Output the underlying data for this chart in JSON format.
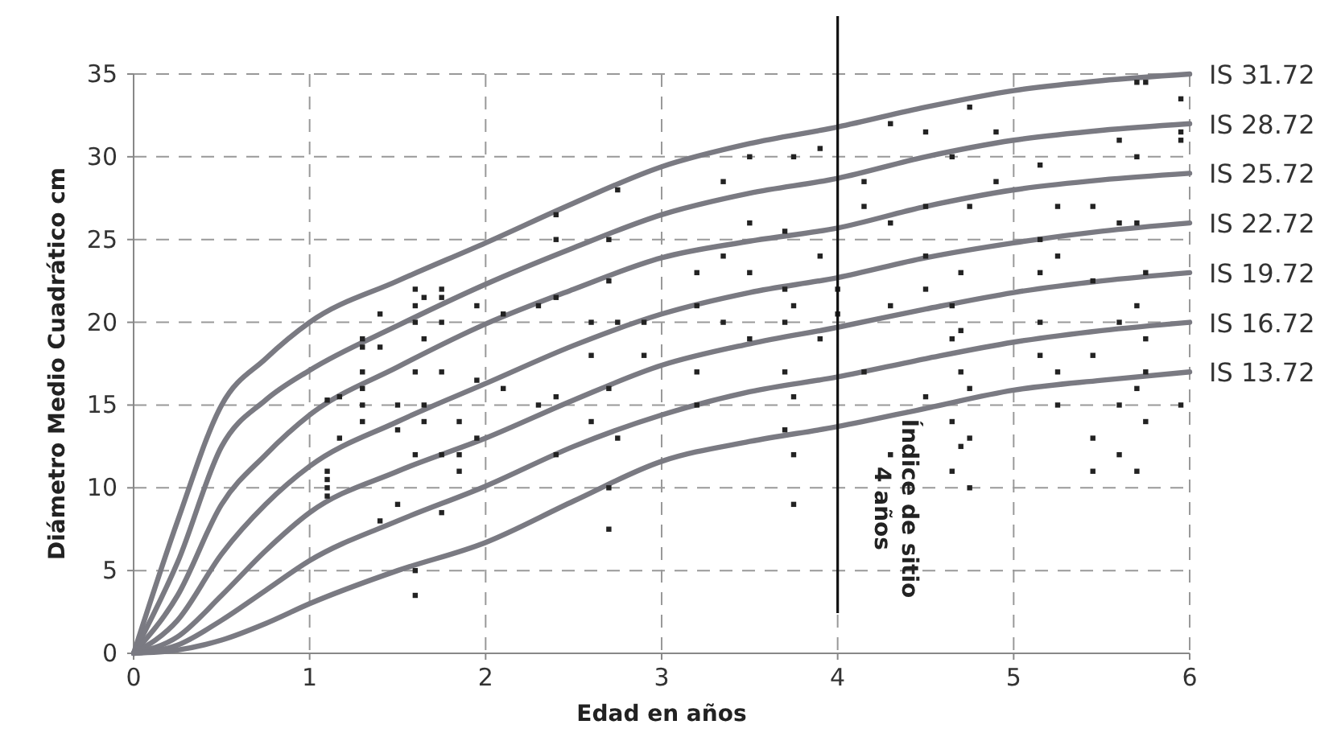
{
  "chart_data": {
    "type": "line",
    "xlabel": "Edad en años",
    "ylabel": "Diámetro Medio Cuadrático cm",
    "xlim": [
      0,
      6
    ],
    "ylim": [
      0,
      35
    ],
    "xticks": [
      0,
      1,
      2,
      3,
      4,
      5,
      6
    ],
    "yticks": [
      0,
      5,
      10,
      15,
      20,
      25,
      30,
      35
    ],
    "grid": true,
    "legend": false,
    "marker": "none",
    "line_style": "solid",
    "x": [
      0,
      0.25,
      0.5,
      0.75,
      1,
      1.5,
      2,
      2.5,
      3,
      3.5,
      4,
      4.5,
      5,
      5.5,
      6
    ],
    "series": [
      {
        "name": "IS 31.72",
        "color": "#7a7a82",
        "values": [
          0,
          8,
          15,
          17.8,
          20,
          22.5,
          24.8,
          27.2,
          29.4,
          30.8,
          31.8,
          33,
          34,
          34.6,
          35
        ]
      },
      {
        "name": "IS 28.72",
        "color": "#7a7a82",
        "values": [
          0,
          5.5,
          12.5,
          15.3,
          17.1,
          19.8,
          22.3,
          24.5,
          26.5,
          27.8,
          28.7,
          30,
          31,
          31.6,
          32
        ]
      },
      {
        "name": "IS 25.72",
        "color": "#7a7a82",
        "values": [
          0,
          3.5,
          9,
          12,
          14.4,
          17.3,
          19.9,
          22,
          23.9,
          24.9,
          25.7,
          27,
          28,
          28.6,
          29
        ]
      },
      {
        "name": "IS 22.72",
        "color": "#7a7a82",
        "values": [
          0,
          2,
          6,
          9,
          11.3,
          14,
          16.3,
          18.6,
          20.5,
          21.8,
          22.7,
          23.9,
          24.8,
          25.5,
          26
        ]
      },
      {
        "name": "IS 19.72",
        "color": "#7a7a82",
        "values": [
          0,
          1,
          3.5,
          6.2,
          8.5,
          11,
          13,
          15.3,
          17.4,
          18.7,
          19.7,
          20.8,
          21.8,
          22.5,
          23
        ]
      },
      {
        "name": "IS 16.72",
        "color": "#7a7a82",
        "values": [
          0,
          0.5,
          2,
          3.8,
          5.6,
          8,
          10.1,
          12.5,
          14.4,
          15.8,
          16.7,
          17.8,
          18.8,
          19.5,
          20
        ]
      },
      {
        "name": "IS 13.72",
        "color": "#7a7a82",
        "values": [
          0,
          0.2,
          0.8,
          1.8,
          3,
          5,
          6.7,
          9.2,
          11.6,
          12.8,
          13.7,
          14.8,
          15.9,
          16.5,
          17
        ]
      },
      {
        "type": "scatter",
        "color": "#222222",
        "marker": "square",
        "x": [
          1.1,
          1.1,
          1.1,
          1.1,
          1.1,
          1.17,
          1.17,
          1.3,
          1.3,
          1.3,
          1.3,
          1.3,
          1.3,
          1.4,
          1.4,
          1.4,
          1.5,
          1.5,
          1.5,
          1.6,
          1.6,
          1.6,
          1.6,
          1.6,
          1.6,
          1.6,
          1.65,
          1.65,
          1.65,
          1.65,
          1.75,
          1.75,
          1.75,
          1.75,
          1.75,
          1.75,
          1.85,
          1.85,
          1.85,
          1.95,
          1.95,
          1.95,
          2.1,
          2.1,
          2.3,
          2.3,
          2.4,
          2.4,
          2.4,
          2.4,
          2.4,
          2.6,
          2.6,
          2.6,
          2.7,
          2.7,
          2.7,
          2.7,
          2.7,
          2.75,
          2.75,
          2.75,
          2.9,
          2.9,
          3.2,
          3.2,
          3.2,
          3.2,
          3.35,
          3.35,
          3.35,
          3.5,
          3.5,
          3.5,
          3.5,
          3.7,
          3.7,
          3.7,
          3.7,
          3.7,
          3.75,
          3.75,
          3.75,
          3.75,
          3.75,
          3.9,
          3.9,
          3.9,
          4.0,
          4.0,
          4.15,
          4.15,
          4.15,
          4.3,
          4.3,
          4.3,
          4.3,
          4.5,
          4.5,
          4.5,
          4.5,
          4.5,
          4.65,
          4.65,
          4.65,
          4.65,
          4.65,
          4.7,
          4.7,
          4.7,
          4.7,
          4.75,
          4.75,
          4.75,
          4.75,
          4.75,
          4.9,
          4.9,
          5.15,
          5.15,
          5.15,
          5.15,
          5.15,
          5.25,
          5.25,
          5.25,
          5.25,
          5.45,
          5.45,
          5.45,
          5.45,
          5.45,
          5.6,
          5.6,
          5.6,
          5.6,
          5.6,
          5.7,
          5.7,
          5.7,
          5.7,
          5.7,
          5.7,
          5.75,
          5.75,
          5.75,
          5.75,
          5.75,
          5.95,
          5.95,
          5.95,
          5.95
        ],
        "values": [
          9.5,
          10,
          10.5,
          11,
          15.3,
          13,
          15.5,
          14,
          15,
          16,
          17,
          18.5,
          19,
          18.5,
          20.5,
          8,
          9,
          13.5,
          15,
          20,
          21,
          22,
          17,
          12,
          5,
          3.5,
          15,
          19,
          21.5,
          14,
          8.5,
          17,
          20,
          21.5,
          22,
          12,
          12,
          14,
          11,
          13,
          16.5,
          21,
          20.5,
          16,
          15,
          21,
          12,
          15.5,
          21.5,
          25,
          26.5,
          14,
          18,
          20,
          7.5,
          10,
          16,
          22.5,
          25,
          13,
          20,
          28,
          18,
          20,
          15,
          17,
          21,
          23,
          20,
          24,
          28.5,
          19,
          23,
          26,
          30,
          13.5,
          17,
          20,
          22,
          25.5,
          9,
          12,
          15.5,
          21,
          30,
          19,
          24,
          30.5,
          20.5,
          22,
          17,
          27,
          28.5,
          12,
          21,
          26,
          32,
          15.5,
          22,
          24,
          27,
          31.5,
          11,
          14,
          19,
          21,
          30,
          12.5,
          17,
          19.5,
          23,
          10,
          13,
          16,
          27,
          33,
          28.5,
          31.5,
          18,
          20,
          23,
          25,
          29.5,
          15,
          17,
          24,
          27,
          11,
          13,
          18,
          22.5,
          27,
          12,
          15,
          20,
          26,
          31,
          11,
          16,
          21,
          26,
          30,
          34.5,
          14,
          17,
          19,
          23,
          34.5,
          15,
          31,
          31.5,
          33.5
        ]
      }
    ],
    "ref_lines": [
      {
        "axis": "x",
        "value": 4,
        "label": "Índice de sitio\n4 años",
        "color": "#111111"
      }
    ]
  }
}
